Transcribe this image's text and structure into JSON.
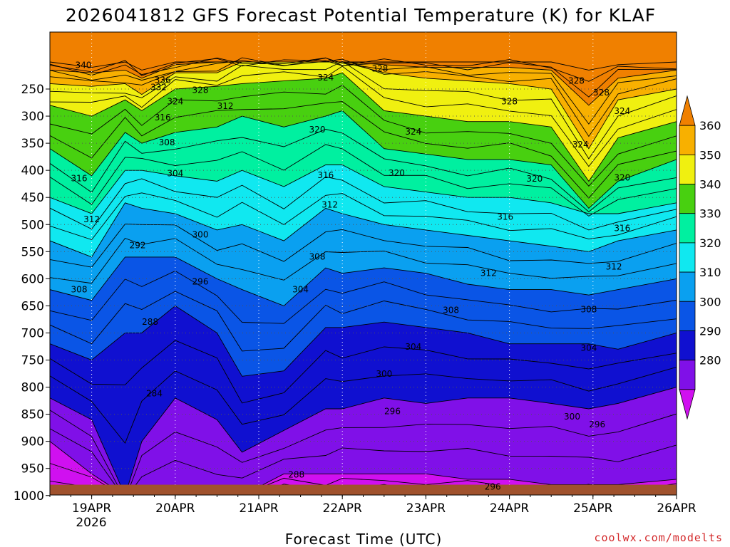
{
  "chart_data": {
    "type": "heatmap",
    "title": "2026041812 GFS Forecast Potential Temperature (K) for KLAF",
    "xlabel": "Forecast Time (UTC)",
    "ylabel": "",
    "credit": "coolwx.com/modelts",
    "x_ticks": [
      "19APR",
      "20APR",
      "21APR",
      "22APR",
      "23APR",
      "24APR",
      "25APR",
      "26APR"
    ],
    "x_year": "2026",
    "x_range_days": [
      18.5,
      26.0
    ],
    "y_ticks": [
      "250",
      "300",
      "350",
      "400",
      "450",
      "500",
      "550",
      "600",
      "650",
      "700",
      "750",
      "800",
      "850",
      "900",
      "950",
      "1000"
    ],
    "y_range_hpa": [
      200,
      1000
    ],
    "colorbar": {
      "levels": [
        "280",
        "290",
        "300",
        "310",
        "320",
        "330",
        "340",
        "350",
        "360"
      ],
      "colors": [
        "#d010f0",
        "#8010e8",
        "#1010d0",
        "#0a55e6",
        "#0aa0f0",
        "#10e8f0",
        "#00f0a0",
        "#48d010",
        "#f0f010",
        "#f8b000",
        "#f08000"
      ]
    },
    "terrain_color": "#a0522d",
    "surface_pressure_hpa": 980,
    "profiles": [
      {
        "x": 18.5,
        "p": [
          1000,
          900,
          820,
          720,
          620,
          530,
          450,
          360,
          280,
          240,
          215,
          200
        ]
      },
      {
        "x": 19.0,
        "p": [
          1000,
          960,
          860,
          750,
          640,
          560,
          480,
          410,
          300,
          245,
          220,
          210
        ]
      },
      {
        "x": 19.4,
        "p": [
          1000,
          1000,
          1000,
          700,
          560,
          460,
          400,
          330,
          270,
          240,
          215,
          200
        ]
      },
      {
        "x": 19.6,
        "p": [
          1000,
          1000,
          900,
          700,
          560,
          470,
          400,
          350,
          290,
          260,
          230,
          215
        ]
      },
      {
        "x": 20.0,
        "p": [
          1000,
          1000,
          820,
          650,
          560,
          480,
          410,
          330,
          250,
          220,
          205,
          200
        ]
      },
      {
        "x": 20.5,
        "p": [
          1000,
          1000,
          860,
          700,
          600,
          510,
          420,
          320,
          245,
          220,
          200,
          200
        ]
      },
      {
        "x": 20.8,
        "p": [
          1000,
          1000,
          920,
          780,
          620,
          500,
          400,
          300,
          240,
          200,
          200,
          200
        ]
      },
      {
        "x": 21.3,
        "p": [
          1000,
          960,
          880,
          770,
          650,
          530,
          430,
          320,
          235,
          200,
          200,
          200
        ]
      },
      {
        "x": 21.8,
        "p": [
          1000,
          960,
          840,
          690,
          580,
          470,
          390,
          300,
          230,
          200,
          200,
          200
        ]
      },
      {
        "x": 22.0,
        "p": [
          1000,
          960,
          840,
          690,
          590,
          480,
          390,
          290,
          220,
          200,
          200,
          200
        ]
      },
      {
        "x": 22.5,
        "p": [
          1000,
          960,
          820,
          680,
          580,
          500,
          430,
          360,
          290,
          220,
          205,
          200
        ]
      },
      {
        "x": 23.0,
        "p": [
          1000,
          960,
          830,
          690,
          590,
          510,
          440,
          370,
          300,
          230,
          210,
          200
        ]
      },
      {
        "x": 23.5,
        "p": [
          1000,
          970,
          820,
          700,
          610,
          520,
          450,
          380,
          310,
          235,
          210,
          200
        ]
      },
      {
        "x": 24.0,
        "p": [
          1000,
          970,
          820,
          720,
          620,
          530,
          450,
          380,
          310,
          240,
          210,
          200
        ]
      },
      {
        "x": 24.5,
        "p": [
          1000,
          980,
          830,
          720,
          620,
          540,
          460,
          390,
          320,
          250,
          215,
          200
        ]
      },
      {
        "x": 24.95,
        "p": [
          1000,
          980,
          840,
          720,
          630,
          550,
          480,
          470,
          420,
          360,
          280,
          215
        ]
      },
      {
        "x": 25.3,
        "p": [
          1000,
          980,
          830,
          730,
          620,
          530,
          480,
          420,
          340,
          270,
          230,
          205
        ]
      },
      {
        "x": 26.0,
        "p": [
          1000,
          970,
          800,
          700,
          600,
          510,
          460,
          380,
          310,
          250,
          215,
          200
        ]
      }
    ],
    "contour_labels": [
      {
        "t": "340",
        "d": 18.9,
        "p": 211
      },
      {
        "t": "336",
        "d": 19.85,
        "p": 239
      },
      {
        "t": "332",
        "d": 19.8,
        "p": 252
      },
      {
        "t": "328",
        "d": 20.3,
        "p": 257
      },
      {
        "t": "324",
        "d": 20.0,
        "p": 278
      },
      {
        "t": "316",
        "d": 19.85,
        "p": 308
      },
      {
        "t": "312",
        "d": 20.6,
        "p": 287
      },
      {
        "t": "308",
        "d": 19.9,
        "p": 354
      },
      {
        "t": "304",
        "d": 20.0,
        "p": 411
      },
      {
        "t": "316",
        "d": 18.85,
        "p": 420
      },
      {
        "t": "312",
        "d": 19.0,
        "p": 496
      },
      {
        "t": "292",
        "d": 19.55,
        "p": 544
      },
      {
        "t": "300",
        "d": 20.3,
        "p": 524
      },
      {
        "t": "296",
        "d": 20.3,
        "p": 611
      },
      {
        "t": "308",
        "d": 18.85,
        "p": 625
      },
      {
        "t": "288",
        "d": 19.7,
        "p": 685
      },
      {
        "t": "284",
        "d": 19.75,
        "p": 817
      },
      {
        "t": "324",
        "d": 21.8,
        "p": 234
      },
      {
        "t": "328",
        "d": 22.45,
        "p": 218
      },
      {
        "t": "320",
        "d": 21.7,
        "p": 330
      },
      {
        "t": "316",
        "d": 21.8,
        "p": 414
      },
      {
        "t": "312",
        "d": 21.85,
        "p": 469
      },
      {
        "t": "308",
        "d": 21.7,
        "p": 565
      },
      {
        "t": "304",
        "d": 21.5,
        "p": 625
      },
      {
        "t": "300",
        "d": 22.5,
        "p": 781
      },
      {
        "t": "296",
        "d": 22.6,
        "p": 850
      },
      {
        "t": "288",
        "d": 21.45,
        "p": 967
      },
      {
        "t": "324",
        "d": 22.85,
        "p": 334
      },
      {
        "t": "320",
        "d": 22.65,
        "p": 410
      },
      {
        "t": "316",
        "d": 23.95,
        "p": 491
      },
      {
        "t": "312",
        "d": 23.75,
        "p": 595
      },
      {
        "t": "308",
        "d": 23.3,
        "p": 663
      },
      {
        "t": "304",
        "d": 22.85,
        "p": 731
      },
      {
        "t": "328",
        "d": 24.0,
        "p": 278
      },
      {
        "t": "320",
        "d": 24.3,
        "p": 421
      },
      {
        "t": "324",
        "d": 24.85,
        "p": 358
      },
      {
        "t": "328",
        "d": 24.8,
        "p": 240
      },
      {
        "t": "328",
        "d": 25.1,
        "p": 262
      },
      {
        "t": "324",
        "d": 25.35,
        "p": 296
      },
      {
        "t": "320",
        "d": 25.35,
        "p": 419
      },
      {
        "t": "316",
        "d": 25.35,
        "p": 512
      },
      {
        "t": "312",
        "d": 25.25,
        "p": 583
      },
      {
        "t": "308",
        "d": 24.95,
        "p": 662
      },
      {
        "t": "304",
        "d": 24.95,
        "p": 733
      },
      {
        "t": "300",
        "d": 24.75,
        "p": 860
      },
      {
        "t": "296",
        "d": 25.05,
        "p": 874
      },
      {
        "t": "296",
        "d": 23.8,
        "p": 989
      }
    ]
  }
}
